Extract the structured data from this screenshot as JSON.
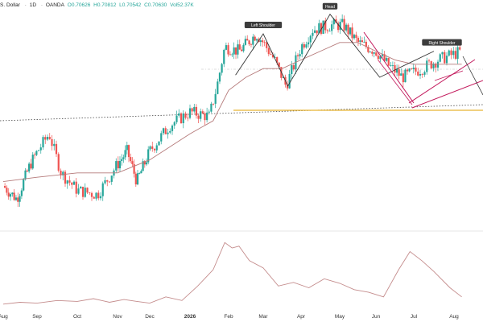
{
  "header": {
    "symbol": "S. Dollar",
    "interval": "1D",
    "source": "OANDA",
    "open": "O0.70626",
    "high": "H0.70812",
    "low": "L0.70542",
    "close": "C0.70630",
    "volume": "Vol52.37K"
  },
  "colors": {
    "up": "#26a69a",
    "down": "#ef5350",
    "pattern": "#c2185b",
    "neckline": "#e6b333",
    "ma": "#b57a7a",
    "oscillator": "#c48c8c"
  },
  "chart_data": [
    {
      "type": "candlestick",
      "title": "",
      "x_tick_labels": [
        "Aug",
        "Sep",
        "Oct",
        "Nov",
        "Dec",
        "2026",
        "Feb",
        "Mar",
        "Apr",
        "May",
        "Jun",
        "Jul",
        "Aug"
      ],
      "pattern_labels": [
        "Left Shoulder",
        "Head",
        "Right Shoulder"
      ],
      "ylim": [
        0.25,
        0.75
      ],
      "price_path": [
        {
          "x": 0,
          "y": 0.35
        },
        {
          "x": 0.4,
          "y": 0.32
        },
        {
          "x": 0.8,
          "y": 0.4
        },
        {
          "x": 1.3,
          "y": 0.47
        },
        {
          "x": 1.6,
          "y": 0.38
        },
        {
          "x": 2.0,
          "y": 0.34
        },
        {
          "x": 2.5,
          "y": 0.33
        },
        {
          "x": 3.0,
          "y": 0.4
        },
        {
          "x": 3.3,
          "y": 0.43
        },
        {
          "x": 3.6,
          "y": 0.36
        },
        {
          "x": 4.0,
          "y": 0.43
        },
        {
          "x": 4.5,
          "y": 0.49
        },
        {
          "x": 5.0,
          "y": 0.52
        },
        {
          "x": 5.5,
          "y": 0.51
        },
        {
          "x": 5.7,
          "y": 0.58
        },
        {
          "x": 5.9,
          "y": 0.67
        },
        {
          "x": 6.3,
          "y": 0.66
        },
        {
          "x": 6.8,
          "y": 0.7
        },
        {
          "x": 7.0,
          "y": 0.68
        },
        {
          "x": 7.3,
          "y": 0.64
        },
        {
          "x": 7.6,
          "y": 0.58
        },
        {
          "x": 8.0,
          "y": 0.67
        },
        {
          "x": 8.3,
          "y": 0.71
        },
        {
          "x": 8.8,
          "y": 0.72
        },
        {
          "x": 9.1,
          "y": 0.72
        },
        {
          "x": 9.5,
          "y": 0.68
        },
        {
          "x": 10.0,
          "y": 0.66
        },
        {
          "x": 10.3,
          "y": 0.63
        },
        {
          "x": 10.7,
          "y": 0.6
        },
        {
          "x": 11.2,
          "y": 0.62
        },
        {
          "x": 11.6,
          "y": 0.64
        },
        {
          "x": 11.9,
          "y": 0.65
        },
        {
          "x": 12.2,
          "y": 0.66
        }
      ],
      "moving_average": [
        {
          "x": 0,
          "y": 0.36
        },
        {
          "x": 1.0,
          "y": 0.37
        },
        {
          "x": 2.0,
          "y": 0.38
        },
        {
          "x": 3.0,
          "y": 0.38
        },
        {
          "x": 4.0,
          "y": 0.41
        },
        {
          "x": 5.0,
          "y": 0.47
        },
        {
          "x": 5.6,
          "y": 0.5
        },
        {
          "x": 6.0,
          "y": 0.57
        },
        {
          "x": 6.5,
          "y": 0.6
        },
        {
          "x": 7.0,
          "y": 0.62
        },
        {
          "x": 7.5,
          "y": 0.62
        },
        {
          "x": 8.0,
          "y": 0.64
        },
        {
          "x": 8.5,
          "y": 0.66
        },
        {
          "x": 9.0,
          "y": 0.68
        },
        {
          "x": 9.5,
          "y": 0.68
        },
        {
          "x": 10.0,
          "y": 0.66
        },
        {
          "x": 10.5,
          "y": 0.64
        },
        {
          "x": 11.0,
          "y": 0.63
        },
        {
          "x": 11.5,
          "y": 0.63
        },
        {
          "x": 12.2,
          "y": 0.63
        }
      ]
    },
    {
      "type": "line",
      "title": "",
      "series": [
        {
          "x": [
            0,
            0.5,
            1.0,
            1.5,
            2.0,
            2.4,
            2.8,
            3.2,
            3.6,
            4.0,
            4.4,
            4.8,
            5.2,
            5.6,
            5.9,
            6.1,
            6.3,
            6.6,
            7.0,
            7.4,
            7.8,
            8.2,
            8.6,
            9.0,
            9.4,
            9.8,
            10.2,
            10.6,
            10.9,
            11.2,
            11.5,
            11.9,
            12.2
          ],
          "y": [
            2,
            4,
            3,
            6,
            5,
            8,
            4,
            7,
            5,
            3,
            10,
            6,
            22,
            40,
            70,
            64,
            66,
            50,
            42,
            22,
            26,
            20,
            30,
            25,
            18,
            15,
            10,
            40,
            60,
            50,
            38,
            20,
            10
          ]
        }
      ],
      "ylim": [
        0,
        80
      ]
    }
  ]
}
